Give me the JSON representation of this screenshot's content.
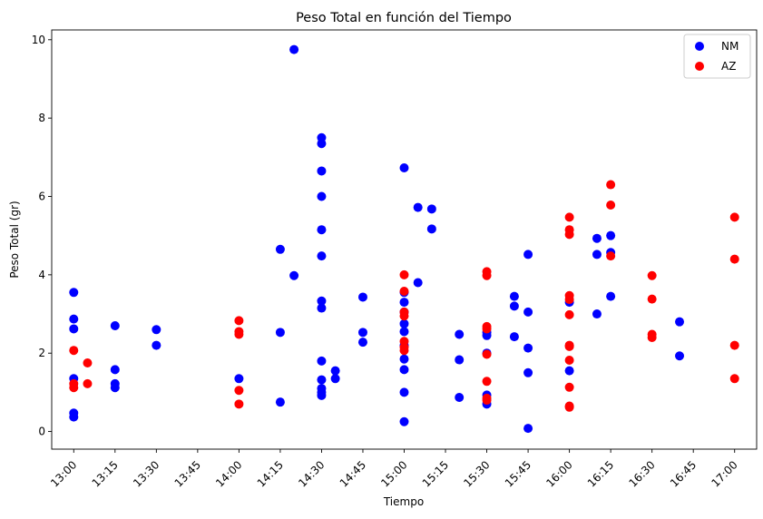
{
  "chart_data": {
    "type": "scatter",
    "title": "Peso Total en función del Tiempo",
    "xlabel": "Tiempo",
    "ylabel": "Peso Total (gr)",
    "x_ticks": [
      "13:00",
      "13:15",
      "13:30",
      "13:45",
      "14:00",
      "14:15",
      "14:30",
      "14:45",
      "15:00",
      "15:15",
      "15:30",
      "15:45",
      "16:00",
      "16:15",
      "16:30",
      "16:45",
      "17:00"
    ],
    "y_ticks": [
      "0",
      "2",
      "4",
      "6",
      "8",
      "10"
    ],
    "xlim": [
      "12:52",
      "17:08"
    ],
    "ylim": [
      -0.45,
      10.25
    ],
    "legend": {
      "position": "top-right",
      "entries": [
        {
          "label": "NM",
          "color": "#0000ff"
        },
        {
          "label": "AZ",
          "color": "#ff0000"
        }
      ]
    },
    "series": [
      {
        "name": "NM",
        "color": "#0000ff",
        "points": [
          [
            "13:00",
            3.55
          ],
          [
            "13:00",
            2.87
          ],
          [
            "13:00",
            2.62
          ],
          [
            "13:00",
            1.35
          ],
          [
            "13:00",
            0.47
          ],
          [
            "13:00",
            0.37
          ],
          [
            "13:15",
            2.7
          ],
          [
            "13:15",
            1.58
          ],
          [
            "13:15",
            1.22
          ],
          [
            "13:15",
            1.12
          ],
          [
            "13:30",
            2.6
          ],
          [
            "13:30",
            2.2
          ],
          [
            "14:00",
            1.35
          ],
          [
            "14:15",
            4.65
          ],
          [
            "14:15",
            2.53
          ],
          [
            "14:15",
            0.75
          ],
          [
            "14:20",
            9.75
          ],
          [
            "14:20",
            3.98
          ],
          [
            "14:30",
            7.5
          ],
          [
            "14:30",
            7.35
          ],
          [
            "14:30",
            6.65
          ],
          [
            "14:30",
            6.0
          ],
          [
            "14:30",
            5.15
          ],
          [
            "14:30",
            4.48
          ],
          [
            "14:30",
            3.33
          ],
          [
            "14:30",
            3.15
          ],
          [
            "14:30",
            1.8
          ],
          [
            "14:30",
            1.32
          ],
          [
            "14:30",
            1.1
          ],
          [
            "14:30",
            1.0
          ],
          [
            "14:30",
            0.92
          ],
          [
            "14:35",
            1.55
          ],
          [
            "14:35",
            1.35
          ],
          [
            "14:45",
            3.43
          ],
          [
            "14:45",
            2.53
          ],
          [
            "14:45",
            2.28
          ],
          [
            "15:00",
            6.73
          ],
          [
            "15:00",
            3.55
          ],
          [
            "15:00",
            3.3
          ],
          [
            "15:00",
            3.05
          ],
          [
            "15:00",
            2.75
          ],
          [
            "15:00",
            2.55
          ],
          [
            "15:00",
            2.2
          ],
          [
            "15:00",
            1.85
          ],
          [
            "15:00",
            1.58
          ],
          [
            "15:00",
            1.0
          ],
          [
            "15:00",
            0.25
          ],
          [
            "15:05",
            5.72
          ],
          [
            "15:05",
            3.8
          ],
          [
            "15:10",
            5.68
          ],
          [
            "15:10",
            5.17
          ],
          [
            "15:20",
            2.48
          ],
          [
            "15:20",
            1.83
          ],
          [
            "15:20",
            0.87
          ],
          [
            "15:30",
            2.53
          ],
          [
            "15:30",
            2.45
          ],
          [
            "15:30",
            2.0
          ],
          [
            "15:30",
            0.93
          ],
          [
            "15:30",
            0.7
          ],
          [
            "15:40",
            3.45
          ],
          [
            "15:40",
            3.2
          ],
          [
            "15:40",
            2.42
          ],
          [
            "15:45",
            4.52
          ],
          [
            "15:45",
            3.05
          ],
          [
            "15:45",
            2.13
          ],
          [
            "15:45",
            1.5
          ],
          [
            "15:45",
            0.08
          ],
          [
            "16:00",
            3.3
          ],
          [
            "16:00",
            1.55
          ],
          [
            "16:10",
            4.93
          ],
          [
            "16:10",
            4.52
          ],
          [
            "16:10",
            3.0
          ],
          [
            "16:15",
            5.0
          ],
          [
            "16:15",
            4.57
          ],
          [
            "16:15",
            3.45
          ],
          [
            "16:40",
            2.8
          ],
          [
            "16:40",
            1.93
          ]
        ]
      },
      {
        "name": "AZ",
        "color": "#ff0000",
        "points": [
          [
            "13:00",
            2.07
          ],
          [
            "13:00",
            1.22
          ],
          [
            "13:00",
            1.12
          ],
          [
            "13:05",
            1.75
          ],
          [
            "13:05",
            1.22
          ],
          [
            "14:00",
            2.83
          ],
          [
            "14:00",
            2.55
          ],
          [
            "14:00",
            2.48
          ],
          [
            "14:00",
            1.05
          ],
          [
            "14:00",
            0.7
          ],
          [
            "15:00",
            4.0
          ],
          [
            "15:00",
            3.58
          ],
          [
            "15:00",
            3.05
          ],
          [
            "15:00",
            2.95
          ],
          [
            "15:00",
            2.3
          ],
          [
            "15:00",
            2.15
          ],
          [
            "15:00",
            2.07
          ],
          [
            "15:30",
            4.08
          ],
          [
            "15:30",
            3.98
          ],
          [
            "15:30",
            2.68
          ],
          [
            "15:30",
            2.62
          ],
          [
            "15:30",
            1.97
          ],
          [
            "15:30",
            1.28
          ],
          [
            "15:30",
            0.85
          ],
          [
            "15:30",
            0.8
          ],
          [
            "16:00",
            5.47
          ],
          [
            "16:00",
            5.15
          ],
          [
            "16:00",
            5.03
          ],
          [
            "16:00",
            3.47
          ],
          [
            "16:00",
            3.37
          ],
          [
            "16:00",
            2.98
          ],
          [
            "16:00",
            2.2
          ],
          [
            "16:00",
            2.17
          ],
          [
            "16:00",
            1.82
          ],
          [
            "16:00",
            1.13
          ],
          [
            "16:00",
            0.65
          ],
          [
            "16:00",
            0.62
          ],
          [
            "16:15",
            6.3
          ],
          [
            "16:15",
            5.78
          ],
          [
            "16:15",
            4.48
          ],
          [
            "16:30",
            3.98
          ],
          [
            "16:30",
            3.38
          ],
          [
            "16:30",
            2.48
          ],
          [
            "16:30",
            2.4
          ],
          [
            "17:00",
            5.47
          ],
          [
            "17:00",
            4.4
          ],
          [
            "17:00",
            2.2
          ],
          [
            "17:00",
            1.35
          ]
        ]
      }
    ]
  }
}
